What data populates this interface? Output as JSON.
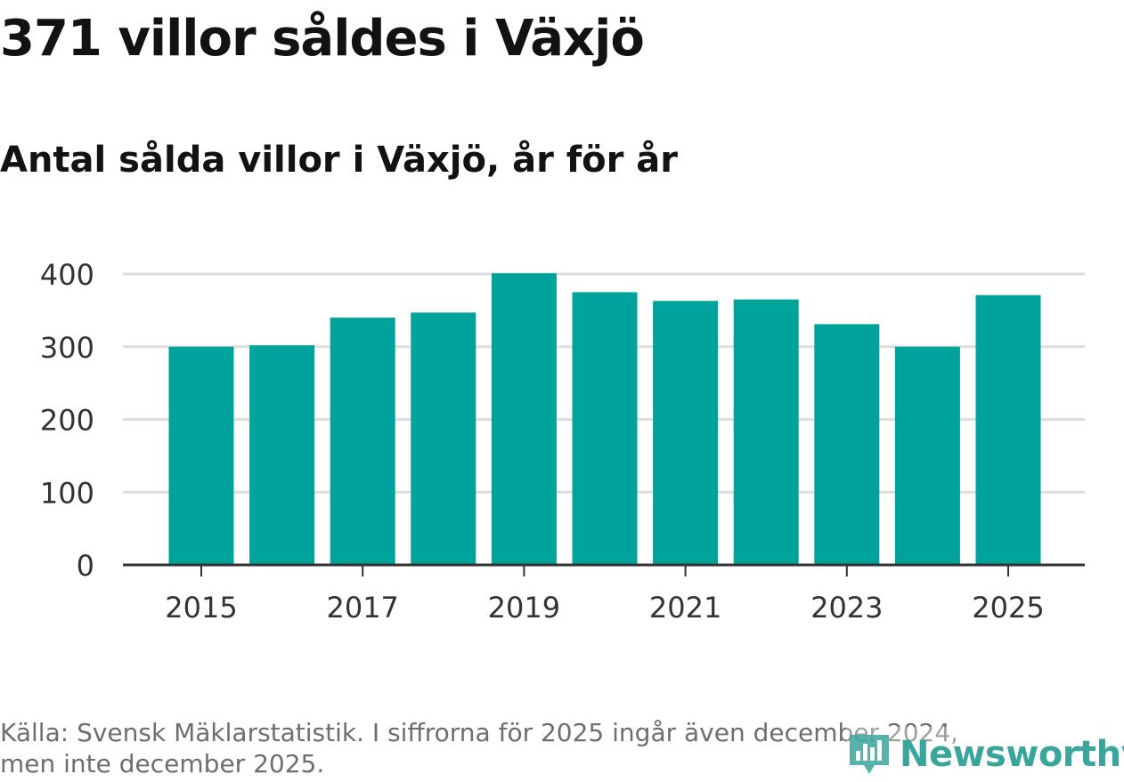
{
  "title": "371 villor såldes i Växjö",
  "subtitle": "Antal sålda villor i Växjö, år för år",
  "footer": {
    "line1": "Källa: Svensk Mäklarstatistik. I siffrorna för 2025 ingår även december 2024,",
    "line2": "men inte december 2025."
  },
  "brand": {
    "name": "Newsworthy",
    "color": "#3aa69b"
  },
  "colors": {
    "bar": "#00a39b",
    "grid": "#dddddd",
    "axis": "#333333"
  },
  "chart_data": {
    "type": "bar",
    "title": "Antal sålda villor i Växjö, år för år",
    "xlabel": "",
    "ylabel": "",
    "categories": [
      "2015",
      "2016",
      "2017",
      "2018",
      "2019",
      "2020",
      "2021",
      "2022",
      "2023",
      "2024",
      "2025"
    ],
    "values": [
      300,
      302,
      340,
      347,
      401,
      375,
      363,
      365,
      331,
      300,
      371
    ],
    "x_tick_labels": [
      "2015",
      "2017",
      "2019",
      "2021",
      "2023",
      "2025"
    ],
    "y_ticks": [
      0,
      100,
      200,
      300,
      400
    ],
    "ylim": [
      0,
      400
    ],
    "grid": true,
    "legend": "none"
  }
}
